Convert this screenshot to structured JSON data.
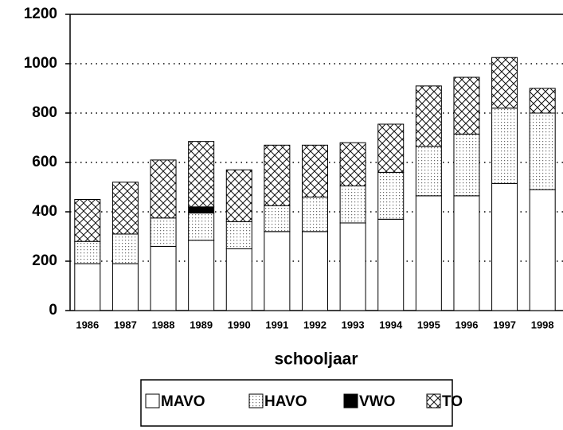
{
  "chart_data": {
    "type": "stacked_bar",
    "x_label": "schooljaar",
    "categories": [
      "1986",
      "1987",
      "1988",
      "1989",
      "1990",
      "1991",
      "1992",
      "1993",
      "1994",
      "1995",
      "1996",
      "1997",
      "1998"
    ],
    "series": [
      {
        "name": "MAVO",
        "color": "#ffffff",
        "hatch": "none",
        "values": [
          190,
          190,
          260,
          285,
          250,
          320,
          320,
          355,
          370,
          465,
          465,
          515,
          490
        ]
      },
      {
        "name": "HAVO",
        "color": "#ffffff",
        "hatch": "dots",
        "values": [
          90,
          120,
          115,
          110,
          110,
          105,
          140,
          150,
          190,
          200,
          250,
          305,
          310
        ]
      },
      {
        "name": "VWO",
        "color": "#000000",
        "hatch": "solid",
        "values": [
          0,
          0,
          0,
          25,
          0,
          0,
          0,
          0,
          0,
          0,
          0,
          0,
          0
        ]
      },
      {
        "name": "TO",
        "color": "#ffffff",
        "hatch": "crosshatch",
        "values": [
          170,
          210,
          235,
          265,
          210,
          245,
          210,
          175,
          195,
          245,
          230,
          205,
          100
        ]
      }
    ],
    "ylim": [
      0,
      1200
    ],
    "yticks": [
      0,
      200,
      400,
      600,
      800,
      1000,
      1200
    ],
    "grid": true,
    "legend": "bottom"
  }
}
